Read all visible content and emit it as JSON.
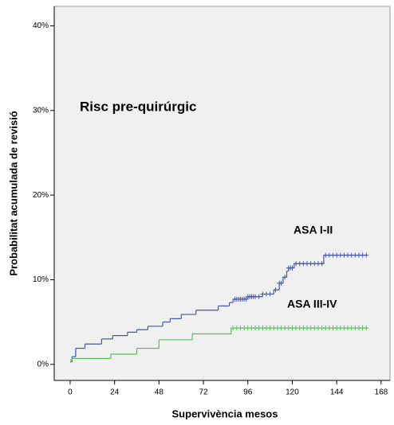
{
  "chart_data": {
    "type": "step",
    "title": "Risc pre-quirúrgic",
    "x_label": "Supervivència mesos",
    "y_label": "Probabilitat acumulada de revisió",
    "xlim": [
      -8.6,
      172.8
    ],
    "xticks": [
      0,
      24,
      48,
      72,
      96,
      120,
      144,
      168
    ],
    "ylim": [
      -1.9,
      42.3
    ],
    "yticks": [
      {
        "value": 0,
        "label": "0%"
      },
      {
        "value": 10,
        "label": "10%"
      },
      {
        "value": 20,
        "label": "20%"
      },
      {
        "value": 30,
        "label": "30%"
      },
      {
        "value": 40,
        "label": "40%"
      }
    ],
    "background": "#f0f0f0",
    "series": [
      {
        "name": "ASA I-II",
        "color": "#4657a6",
        "x": [
          0,
          1,
          3,
          8,
          17,
          23,
          31,
          36,
          42,
          50,
          54,
          60,
          68,
          80,
          86,
          88,
          96,
          104,
          110,
          113,
          115,
          117,
          118,
          121,
          137,
          160
        ],
        "values": [
          0.3,
          0.9,
          1.9,
          2.4,
          3.0,
          3.4,
          3.8,
          4.1,
          4.5,
          5.0,
          5.4,
          5.9,
          6.4,
          6.9,
          7.3,
          7.7,
          8.0,
          8.3,
          8.8,
          9.6,
          10.3,
          11.0,
          11.4,
          11.9,
          12.9,
          12.9
        ],
        "censored_x": [
          89,
          90,
          91,
          92,
          93,
          94,
          95,
          96,
          97,
          98,
          99,
          100,
          102,
          104,
          106,
          108,
          111,
          113,
          114,
          116,
          118,
          119,
          120,
          122,
          124,
          126,
          128,
          130,
          132,
          134,
          136,
          138,
          140,
          142,
          144,
          146,
          148,
          150,
          152,
          154,
          156,
          158,
          160
        ],
        "censored_values": [
          7.7,
          7.7,
          7.7,
          7.7,
          7.7,
          7.7,
          7.7,
          8.0,
          8.0,
          8.0,
          8.0,
          8.0,
          8.0,
          8.3,
          8.3,
          8.3,
          8.8,
          9.6,
          9.6,
          10.3,
          11.4,
          11.4,
          11.4,
          11.9,
          11.9,
          11.9,
          11.9,
          11.9,
          11.9,
          11.9,
          11.9,
          12.9,
          12.9,
          12.9,
          12.9,
          12.9,
          12.9,
          12.9,
          12.9,
          12.9,
          12.9,
          12.9,
          12.9
        ]
      },
      {
        "name": "ASA III-IV",
        "color": "#5cbd5c",
        "x": [
          0,
          1,
          22,
          36,
          48,
          66,
          87,
          160
        ],
        "values": [
          0.5,
          0.7,
          1.2,
          1.9,
          2.9,
          3.6,
          4.3,
          4.3
        ],
        "censored_x": [
          88,
          90,
          92,
          94,
          96,
          98,
          100,
          102,
          104,
          106,
          108,
          110,
          112,
          114,
          116,
          118,
          120,
          122,
          124,
          126,
          128,
          130,
          132,
          134,
          136,
          138,
          140,
          142,
          144,
          146,
          148,
          150,
          152,
          154,
          156,
          158,
          160
        ],
        "censored_values": [
          4.3,
          4.3,
          4.3,
          4.3,
          4.3,
          4.3,
          4.3,
          4.3,
          4.3,
          4.3,
          4.3,
          4.3,
          4.3,
          4.3,
          4.3,
          4.3,
          4.3,
          4.3,
          4.3,
          4.3,
          4.3,
          4.3,
          4.3,
          4.3,
          4.3,
          4.3,
          4.3,
          4.3,
          4.3,
          4.3,
          4.3,
          4.3,
          4.3,
          4.3,
          4.3,
          4.3,
          4.3
        ]
      }
    ]
  }
}
